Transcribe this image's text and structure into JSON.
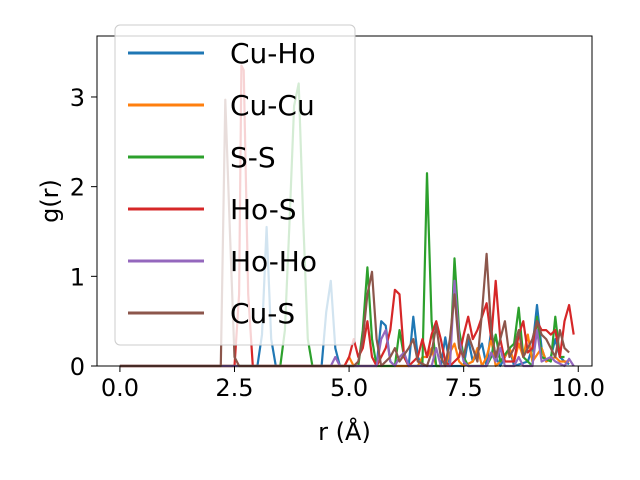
{
  "chart_data": {
    "type": "line",
    "xlabel": "r (Å)",
    "ylabel": "g(r)",
    "xlim": [
      -0.5,
      10.3
    ],
    "ylim": [
      0,
      3.68
    ],
    "x_ticks": [
      0.0,
      2.5,
      5.0,
      7.5,
      10.0
    ],
    "x_tick_labels": [
      "0.0",
      "2.5",
      "5.0",
      "7.5",
      "10.0"
    ],
    "y_ticks": [
      0,
      1,
      2,
      3
    ],
    "y_tick_labels": [
      "0",
      "1",
      "2",
      "3"
    ],
    "grid": false,
    "legend_position": "upper-left",
    "series": [
      {
        "name": "Cu-Ho",
        "color": "#1f77b4",
        "points": [
          [
            0,
            0
          ],
          [
            3.0,
            0
          ],
          [
            3.1,
            0.35
          ],
          [
            3.2,
            1.55
          ],
          [
            3.3,
            0.3
          ],
          [
            3.4,
            0
          ],
          [
            4.4,
            0
          ],
          [
            4.5,
            0.6
          ],
          [
            4.6,
            0.95
          ],
          [
            4.7,
            0.2
          ],
          [
            4.8,
            0
          ],
          [
            5.6,
            0
          ],
          [
            5.7,
            0.5
          ],
          [
            5.8,
            0.45
          ],
          [
            5.9,
            0.05
          ],
          [
            6.0,
            0
          ],
          [
            6.3,
            0
          ],
          [
            6.4,
            0.55
          ],
          [
            6.5,
            0.1
          ],
          [
            6.6,
            0
          ],
          [
            7.0,
            0
          ],
          [
            7.1,
            0.32
          ],
          [
            7.2,
            0
          ],
          [
            7.5,
            0
          ],
          [
            7.6,
            0.3
          ],
          [
            7.7,
            0.05
          ],
          [
            7.9,
            0.25
          ],
          [
            8.0,
            0
          ],
          [
            8.1,
            0.4
          ],
          [
            8.2,
            0.1
          ],
          [
            8.3,
            0
          ],
          [
            8.5,
            0.2
          ],
          [
            8.6,
            0
          ],
          [
            8.9,
            0.05
          ],
          [
            9.0,
            0.2
          ],
          [
            9.1,
            0.68
          ],
          [
            9.2,
            0.2
          ],
          [
            9.3,
            0.05
          ],
          [
            9.4,
            0.1
          ],
          [
            9.5,
            0.3
          ],
          [
            9.6,
            0.1
          ],
          [
            9.7,
            0.05
          ],
          [
            9.8,
            0.02
          ]
        ]
      },
      {
        "name": "Cu-Cu",
        "color": "#ff7f0e",
        "points": [
          [
            0,
            0
          ],
          [
            4.9,
            0
          ],
          [
            5.0,
            0.1
          ],
          [
            5.1,
            0
          ],
          [
            6.5,
            0
          ],
          [
            6.6,
            0.1
          ],
          [
            6.7,
            0.1
          ],
          [
            6.8,
            0.2
          ],
          [
            6.9,
            0
          ],
          [
            7.1,
            0
          ],
          [
            7.2,
            0.15
          ],
          [
            7.3,
            0.25
          ],
          [
            7.4,
            0.05
          ],
          [
            7.5,
            0
          ],
          [
            7.7,
            0.05
          ],
          [
            7.8,
            0.2
          ],
          [
            7.9,
            0
          ],
          [
            8.0,
            0.1
          ],
          [
            8.1,
            0.3
          ],
          [
            8.2,
            0
          ],
          [
            8.4,
            0.1
          ],
          [
            8.5,
            0.2
          ],
          [
            8.6,
            0.05
          ],
          [
            8.7,
            0.25
          ],
          [
            8.8,
            0.1
          ],
          [
            8.9,
            0.35
          ],
          [
            9.0,
            0.05
          ],
          [
            9.2,
            0.2
          ],
          [
            9.3,
            0.05
          ],
          [
            9.5,
            0.1
          ],
          [
            9.6,
            0.05
          ],
          [
            9.8,
            0.05
          ]
        ]
      },
      {
        "name": "S-S",
        "color": "#2ca02c",
        "points": [
          [
            0,
            0
          ],
          [
            3.5,
            0
          ],
          [
            3.6,
            0.4
          ],
          [
            3.7,
            1.6
          ],
          [
            3.8,
            2.9
          ],
          [
            3.9,
            3.15
          ],
          [
            4.0,
            1.6
          ],
          [
            4.1,
            0.3
          ],
          [
            4.2,
            0
          ],
          [
            5.2,
            0
          ],
          [
            5.3,
            0.4
          ],
          [
            5.4,
            1.1
          ],
          [
            5.5,
            0.3
          ],
          [
            5.6,
            0
          ],
          [
            6.0,
            0
          ],
          [
            6.1,
            0.4
          ],
          [
            6.2,
            0.1
          ],
          [
            6.3,
            0
          ],
          [
            6.6,
            0
          ],
          [
            6.7,
            2.15
          ],
          [
            6.8,
            0.5
          ],
          [
            6.9,
            0
          ],
          [
            7.2,
            0
          ],
          [
            7.3,
            1.2
          ],
          [
            7.4,
            0.4
          ],
          [
            7.5,
            0.1
          ],
          [
            7.6,
            0
          ],
          [
            8.0,
            0
          ],
          [
            8.1,
            0.1
          ],
          [
            8.2,
            0.35
          ],
          [
            8.3,
            0.05
          ],
          [
            8.5,
            0.2
          ],
          [
            8.6,
            0.25
          ],
          [
            8.7,
            0.65
          ],
          [
            8.8,
            0.1
          ],
          [
            9.0,
            0
          ],
          [
            9.1,
            0.55
          ],
          [
            9.2,
            0.1
          ],
          [
            9.4,
            0.05
          ],
          [
            9.5,
            0.55
          ],
          [
            9.6,
            0.1
          ],
          [
            9.7,
            0.1
          ]
        ]
      },
      {
        "name": "Ho-S",
        "color": "#d62728",
        "points": [
          [
            0,
            0
          ],
          [
            2.5,
            0
          ],
          [
            2.6,
            0.8
          ],
          [
            2.65,
            3.35
          ],
          [
            2.7,
            3.3
          ],
          [
            2.8,
            0.8
          ],
          [
            2.9,
            0
          ],
          [
            4.9,
            0
          ],
          [
            5.0,
            0.1
          ],
          [
            5.1,
            0.3
          ],
          [
            5.2,
            0.1
          ],
          [
            5.3,
            0.2
          ],
          [
            5.4,
            0.5
          ],
          [
            5.5,
            0.1
          ],
          [
            5.6,
            0
          ],
          [
            5.8,
            0.2
          ],
          [
            5.9,
            0.4
          ],
          [
            6.0,
            0.85
          ],
          [
            6.1,
            0.8
          ],
          [
            6.2,
            0.1
          ],
          [
            6.3,
            0
          ],
          [
            6.5,
            0.1
          ],
          [
            6.6,
            0.3
          ],
          [
            6.7,
            0.1
          ],
          [
            6.8,
            0.35
          ],
          [
            6.9,
            0.5
          ],
          [
            7.0,
            0.3
          ],
          [
            7.1,
            0.05
          ],
          [
            7.2,
            0
          ],
          [
            7.4,
            0.1
          ],
          [
            7.5,
            0.35
          ],
          [
            7.6,
            0.55
          ],
          [
            7.7,
            0.3
          ],
          [
            7.8,
            0.4
          ],
          [
            7.9,
            0.55
          ],
          [
            8.0,
            0.7
          ],
          [
            8.1,
            0.3
          ],
          [
            8.2,
            0.95
          ],
          [
            8.3,
            0.3
          ],
          [
            8.4,
            0.05
          ],
          [
            8.6,
            0.05
          ],
          [
            8.7,
            0.35
          ],
          [
            8.8,
            0.5
          ],
          [
            8.9,
            0.15
          ],
          [
            9.0,
            0.2
          ],
          [
            9.1,
            0.5
          ],
          [
            9.2,
            0.4
          ],
          [
            9.3,
            0.4
          ],
          [
            9.4,
            0.35
          ],
          [
            9.5,
            0.4
          ],
          [
            9.6,
            0.1
          ],
          [
            9.7,
            0.5
          ],
          [
            9.8,
            0.68
          ],
          [
            9.9,
            0.35
          ]
        ]
      },
      {
        "name": "Ho-Ho",
        "color": "#9467bd",
        "points": [
          [
            0,
            0
          ],
          [
            4.6,
            0
          ],
          [
            4.7,
            0.1
          ],
          [
            4.8,
            0
          ],
          [
            5.6,
            0
          ],
          [
            5.7,
            0.3
          ],
          [
            5.8,
            0.4
          ],
          [
            5.9,
            0.05
          ],
          [
            6.0,
            0
          ],
          [
            6.1,
            0.1
          ],
          [
            6.2,
            0.15
          ],
          [
            6.3,
            0
          ],
          [
            6.8,
            0
          ],
          [
            6.9,
            0.2
          ],
          [
            7.0,
            0
          ],
          [
            7.2,
            0
          ],
          [
            7.3,
            0.95
          ],
          [
            7.4,
            0.3
          ],
          [
            7.5,
            0.05
          ],
          [
            7.6,
            0
          ],
          [
            8.0,
            0
          ],
          [
            8.1,
            0.15
          ],
          [
            8.2,
            0.05
          ],
          [
            8.3,
            0.2
          ],
          [
            8.4,
            0
          ],
          [
            8.6,
            0
          ],
          [
            8.7,
            0.1
          ],
          [
            8.8,
            0
          ],
          [
            9.0,
            0
          ],
          [
            9.1,
            0.4
          ],
          [
            9.2,
            0.05
          ],
          [
            9.4,
            0.1
          ],
          [
            9.5,
            0.05
          ],
          [
            9.7,
            0
          ],
          [
            9.8,
            0.08
          ],
          [
            9.9,
            0
          ]
        ]
      },
      {
        "name": "Cu-S",
        "color": "#8c564b",
        "points": [
          [
            0,
            0
          ],
          [
            2.2,
            0
          ],
          [
            2.3,
            2.97
          ],
          [
            2.4,
            1.5
          ],
          [
            2.5,
            0.1
          ],
          [
            2.6,
            0
          ],
          [
            5.1,
            0
          ],
          [
            5.2,
            0.05
          ],
          [
            5.3,
            0.3
          ],
          [
            5.4,
            0.8
          ],
          [
            5.5,
            1.05
          ],
          [
            5.6,
            0.3
          ],
          [
            5.7,
            0
          ],
          [
            5.9,
            0.1
          ],
          [
            6.0,
            0.2
          ],
          [
            6.1,
            0.05
          ],
          [
            6.3,
            0.2
          ],
          [
            6.4,
            0.3
          ],
          [
            6.5,
            0.05
          ],
          [
            6.7,
            0
          ],
          [
            6.8,
            0.15
          ],
          [
            6.9,
            0.45
          ],
          [
            7.0,
            0.1
          ],
          [
            7.1,
            0
          ],
          [
            7.2,
            0.3
          ],
          [
            7.3,
            0.8
          ],
          [
            7.4,
            0.2
          ],
          [
            7.5,
            0.1
          ],
          [
            7.6,
            0.35
          ],
          [
            7.7,
            0.2
          ],
          [
            7.8,
            0.05
          ],
          [
            7.9,
            0.6
          ],
          [
            8.0,
            1.25
          ],
          [
            8.1,
            0.4
          ],
          [
            8.2,
            0.1
          ],
          [
            8.3,
            0.3
          ],
          [
            8.4,
            0.5
          ],
          [
            8.5,
            0.1
          ],
          [
            8.6,
            0.2
          ],
          [
            8.7,
            0.4
          ],
          [
            8.8,
            0.1
          ],
          [
            9.0,
            0.3
          ],
          [
            9.1,
            0.5
          ],
          [
            9.2,
            0.35
          ],
          [
            9.3,
            0.3
          ],
          [
            9.4,
            0.2
          ],
          [
            9.5,
            0.1
          ],
          [
            9.6,
            0.4
          ],
          [
            9.7,
            0.2
          ],
          [
            9.8,
            0.15
          ]
        ]
      }
    ]
  }
}
